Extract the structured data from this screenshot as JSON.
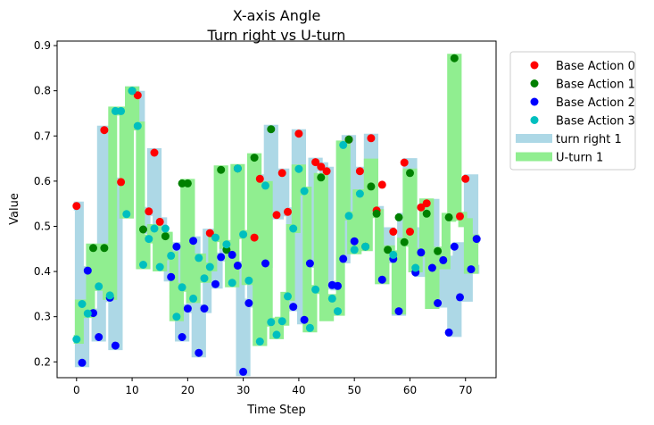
{
  "chart_data": {
    "type": "scatter",
    "title": "X-axis Angle",
    "subtitle": "Turn right vs U-turn",
    "xlabel": "Time Step",
    "ylabel": "Value",
    "xlim": [
      -3.5,
      75.5
    ],
    "ylim": [
      0.165,
      0.91
    ],
    "x_ticks": [
      0,
      10,
      20,
      30,
      40,
      50,
      60,
      70
    ],
    "y_ticks": [
      0.2,
      0.3,
      0.4,
      0.5,
      0.6,
      0.7,
      0.8,
      0.9
    ],
    "grid": false,
    "legend_position": "outside-right",
    "band_series": [
      {
        "name": "turn right 1",
        "color": "#add8e6",
        "x": [
          0,
          1,
          2,
          3,
          4,
          5,
          6,
          7,
          8,
          9,
          10,
          11,
          12,
          13,
          14,
          15,
          16,
          17,
          18,
          19,
          20,
          21,
          22,
          23,
          24,
          25,
          26,
          27,
          28,
          29,
          30,
          31,
          32,
          33,
          34,
          35,
          36,
          37,
          38,
          39,
          40,
          41,
          42,
          43,
          44,
          45,
          46,
          47,
          48,
          49,
          50,
          51,
          52,
          53,
          54,
          55,
          56,
          57,
          58,
          59,
          60,
          61,
          62,
          63,
          64,
          65,
          66,
          67,
          68,
          69,
          70,
          71,
          72
        ],
        "y": [
          0.545,
          0.198,
          0.402,
          0.308,
          0.255,
          0.713,
          0.342,
          0.236,
          0.598,
          0.57,
          0.8,
          0.79,
          0.493,
          0.533,
          0.663,
          0.51,
          0.475,
          0.388,
          0.455,
          0.255,
          0.318,
          0.468,
          0.22,
          0.318,
          0.485,
          0.372,
          0.432,
          0.448,
          0.437,
          0.413,
          0.178,
          0.33,
          0.475,
          0.605,
          0.418,
          0.715,
          0.525,
          0.618,
          0.532,
          0.322,
          0.705,
          0.293,
          0.418,
          0.642,
          0.632,
          0.622,
          0.37,
          0.368,
          0.428,
          0.692,
          0.467,
          0.622,
          0.588,
          0.695,
          0.535,
          0.382,
          0.488,
          0.428,
          0.312,
          0.52,
          0.641,
          0.488,
          0.398,
          0.542,
          0.551,
          0.408,
          0.33,
          0.425,
          0.265,
          0.455,
          0.343,
          0.605,
          0.405
        ]
      },
      {
        "name": "U-turn 1",
        "color": "#90ee90",
        "x": [
          0,
          1,
          2,
          3,
          4,
          5,
          6,
          7,
          8,
          9,
          10,
          11,
          12,
          13,
          14,
          15,
          16,
          17,
          18,
          19,
          20,
          21,
          22,
          23,
          24,
          25,
          26,
          27,
          28,
          29,
          30,
          31,
          32,
          33,
          34,
          35,
          36,
          37,
          38,
          39,
          40,
          41,
          42,
          43,
          44,
          45,
          46,
          47,
          48,
          49,
          50,
          51,
          52,
          53,
          54,
          55,
          56,
          57,
          58,
          59,
          60,
          61,
          62,
          63,
          64,
          65,
          66,
          67,
          68,
          69,
          70,
          71,
          72
        ],
        "y": [
          0.25,
          0.328,
          0.307,
          0.452,
          0.367,
          0.452,
          0.347,
          0.755,
          0.755,
          0.527,
          0.8,
          0.722,
          0.415,
          0.472,
          0.495,
          0.41,
          0.478,
          0.435,
          0.3,
          0.365,
          0.595,
          0.34,
          0.43,
          0.385,
          0.41,
          0.475,
          0.625,
          0.46,
          0.375,
          0.628,
          0.482,
          0.38,
          0.652,
          0.245,
          0.59,
          0.288,
          0.26,
          0.29,
          0.345,
          0.495,
          0.627,
          0.578,
          0.275,
          0.36,
          0.608,
          0.3,
          0.34,
          0.312,
          0.68,
          0.523,
          0.448,
          0.572,
          0.455,
          0.64,
          0.528,
          0.382,
          0.448,
          0.437,
          0.315,
          0.465,
          0.618,
          0.408,
          0.442,
          0.552,
          0.327,
          0.445,
          0.415,
          0.52,
          0.872,
          0.522,
          0.508,
          0.405,
          0.472
        ]
      }
    ],
    "series": [
      {
        "name": "Base Action 0",
        "color": "#ff0000",
        "x": [
          0,
          5,
          8,
          11,
          13,
          14,
          15,
          24,
          32,
          33,
          36,
          37,
          38,
          40,
          43,
          44,
          45,
          49,
          51,
          53,
          54,
          55,
          57,
          59,
          60,
          62,
          63,
          69,
          70
        ],
        "y": [
          0.545,
          0.713,
          0.598,
          0.79,
          0.533,
          0.663,
          0.51,
          0.485,
          0.475,
          0.605,
          0.525,
          0.618,
          0.532,
          0.705,
          0.642,
          0.632,
          0.622,
          0.692,
          0.622,
          0.695,
          0.535,
          0.592,
          0.488,
          0.641,
          0.488,
          0.542,
          0.551,
          0.522,
          0.605
        ]
      },
      {
        "name": "Base Action 1",
        "color": "#008000",
        "x": [
          3,
          5,
          10,
          12,
          16,
          19,
          20,
          26,
          27,
          29,
          32,
          35,
          44,
          49,
          52,
          53,
          54,
          56,
          58,
          59,
          60,
          63,
          65,
          67,
          68
        ],
        "y": [
          0.452,
          0.452,
          0.8,
          0.493,
          0.478,
          0.595,
          0.595,
          0.625,
          0.448,
          0.628,
          0.652,
          0.715,
          0.608,
          0.692,
          0.455,
          0.588,
          0.528,
          0.448,
          0.52,
          0.465,
          0.618,
          0.528,
          0.445,
          0.52,
          0.872
        ]
      },
      {
        "name": "Base Action 2",
        "color": "#0000ff",
        "x": [
          1,
          2,
          3,
          4,
          6,
          7,
          17,
          18,
          19,
          20,
          21,
          22,
          23,
          25,
          26,
          28,
          29,
          30,
          31,
          34,
          39,
          41,
          42,
          46,
          47,
          48,
          50,
          55,
          57,
          58,
          61,
          62,
          64,
          65,
          66,
          67,
          68,
          69,
          71,
          72
        ],
        "y": [
          0.198,
          0.402,
          0.308,
          0.255,
          0.342,
          0.236,
          0.388,
          0.455,
          0.255,
          0.318,
          0.468,
          0.22,
          0.318,
          0.372,
          0.432,
          0.437,
          0.413,
          0.178,
          0.33,
          0.418,
          0.322,
          0.293,
          0.418,
          0.37,
          0.368,
          0.428,
          0.467,
          0.382,
          0.428,
          0.312,
          0.398,
          0.442,
          0.408,
          0.33,
          0.425,
          0.265,
          0.455,
          0.343,
          0.405,
          0.472
        ]
      },
      {
        "name": "Base Action 3",
        "color": "#00bfbf",
        "x": [
          0,
          1,
          2,
          4,
          6,
          7,
          8,
          9,
          10,
          11,
          12,
          13,
          14,
          15,
          16,
          17,
          18,
          19,
          21,
          22,
          23,
          24,
          25,
          27,
          28,
          29,
          30,
          31,
          33,
          34,
          35,
          36,
          37,
          38,
          39,
          40,
          41,
          42,
          43,
          46,
          47,
          48,
          49,
          50,
          51,
          52,
          57,
          61
        ],
        "y": [
          0.25,
          0.328,
          0.307,
          0.367,
          0.347,
          0.755,
          0.755,
          0.527,
          0.8,
          0.722,
          0.415,
          0.472,
          0.495,
          0.41,
          0.495,
          0.435,
          0.3,
          0.365,
          0.34,
          0.43,
          0.385,
          0.41,
          0.475,
          0.46,
          0.375,
          0.628,
          0.482,
          0.38,
          0.245,
          0.59,
          0.288,
          0.26,
          0.29,
          0.345,
          0.495,
          0.627,
          0.578,
          0.275,
          0.36,
          0.34,
          0.312,
          0.68,
          0.523,
          0.448,
          0.572,
          0.455,
          0.437,
          0.408
        ]
      }
    ]
  }
}
